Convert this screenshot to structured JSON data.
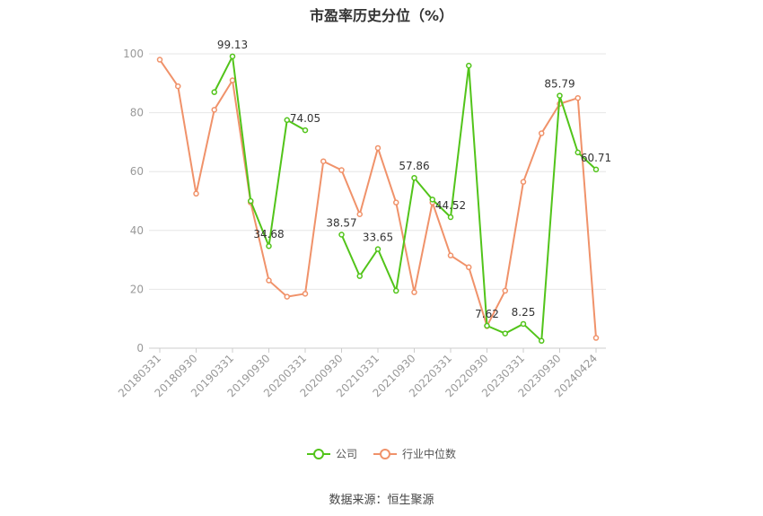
{
  "chart_data": {
    "type": "line",
    "title": "市盈率历史分位（%）",
    "source": "数据来源：恒生聚源",
    "ylim": [
      0,
      100
    ],
    "y_ticks": [
      0,
      20,
      40,
      60,
      80,
      100
    ],
    "x_labels": [
      "20180331",
      "20180930",
      "20190331",
      "20190930",
      "20200331",
      "20200930",
      "20210331",
      "20210930",
      "20220331",
      "20220930",
      "20230331",
      "20230930",
      "20240424"
    ],
    "grid": true,
    "legend_position": "bottom",
    "series": [
      {
        "name": "公司",
        "color": "#52c41a",
        "values": [
          null,
          null,
          null,
          87,
          99.13,
          50,
          34.68,
          77.5,
          74.05,
          null,
          38.57,
          24.5,
          33.65,
          19.5,
          57.86,
          50.5,
          44.52,
          96,
          7.62,
          5,
          8.25,
          2.5,
          85.79,
          66.5,
          60.71
        ],
        "labels": {
          "4": "99.13",
          "6": "34.68",
          "8": "74.05",
          "10": "38.57",
          "12": "33.65",
          "14": "57.86",
          "16": "44.52",
          "18": "7.62",
          "20": "8.25",
          "22": "85.79",
          "24": "60.71"
        }
      },
      {
        "name": "行业中位数",
        "color": "#f0926a",
        "values": [
          98,
          89,
          52.5,
          81,
          91,
          49.5,
          23,
          17.5,
          18.5,
          63.5,
          60.5,
          45.5,
          68,
          49.5,
          19,
          49.5,
          31.5,
          27.5,
          7.5,
          19.5,
          56.5,
          73,
          83,
          85,
          3.5
        ]
      }
    ]
  }
}
